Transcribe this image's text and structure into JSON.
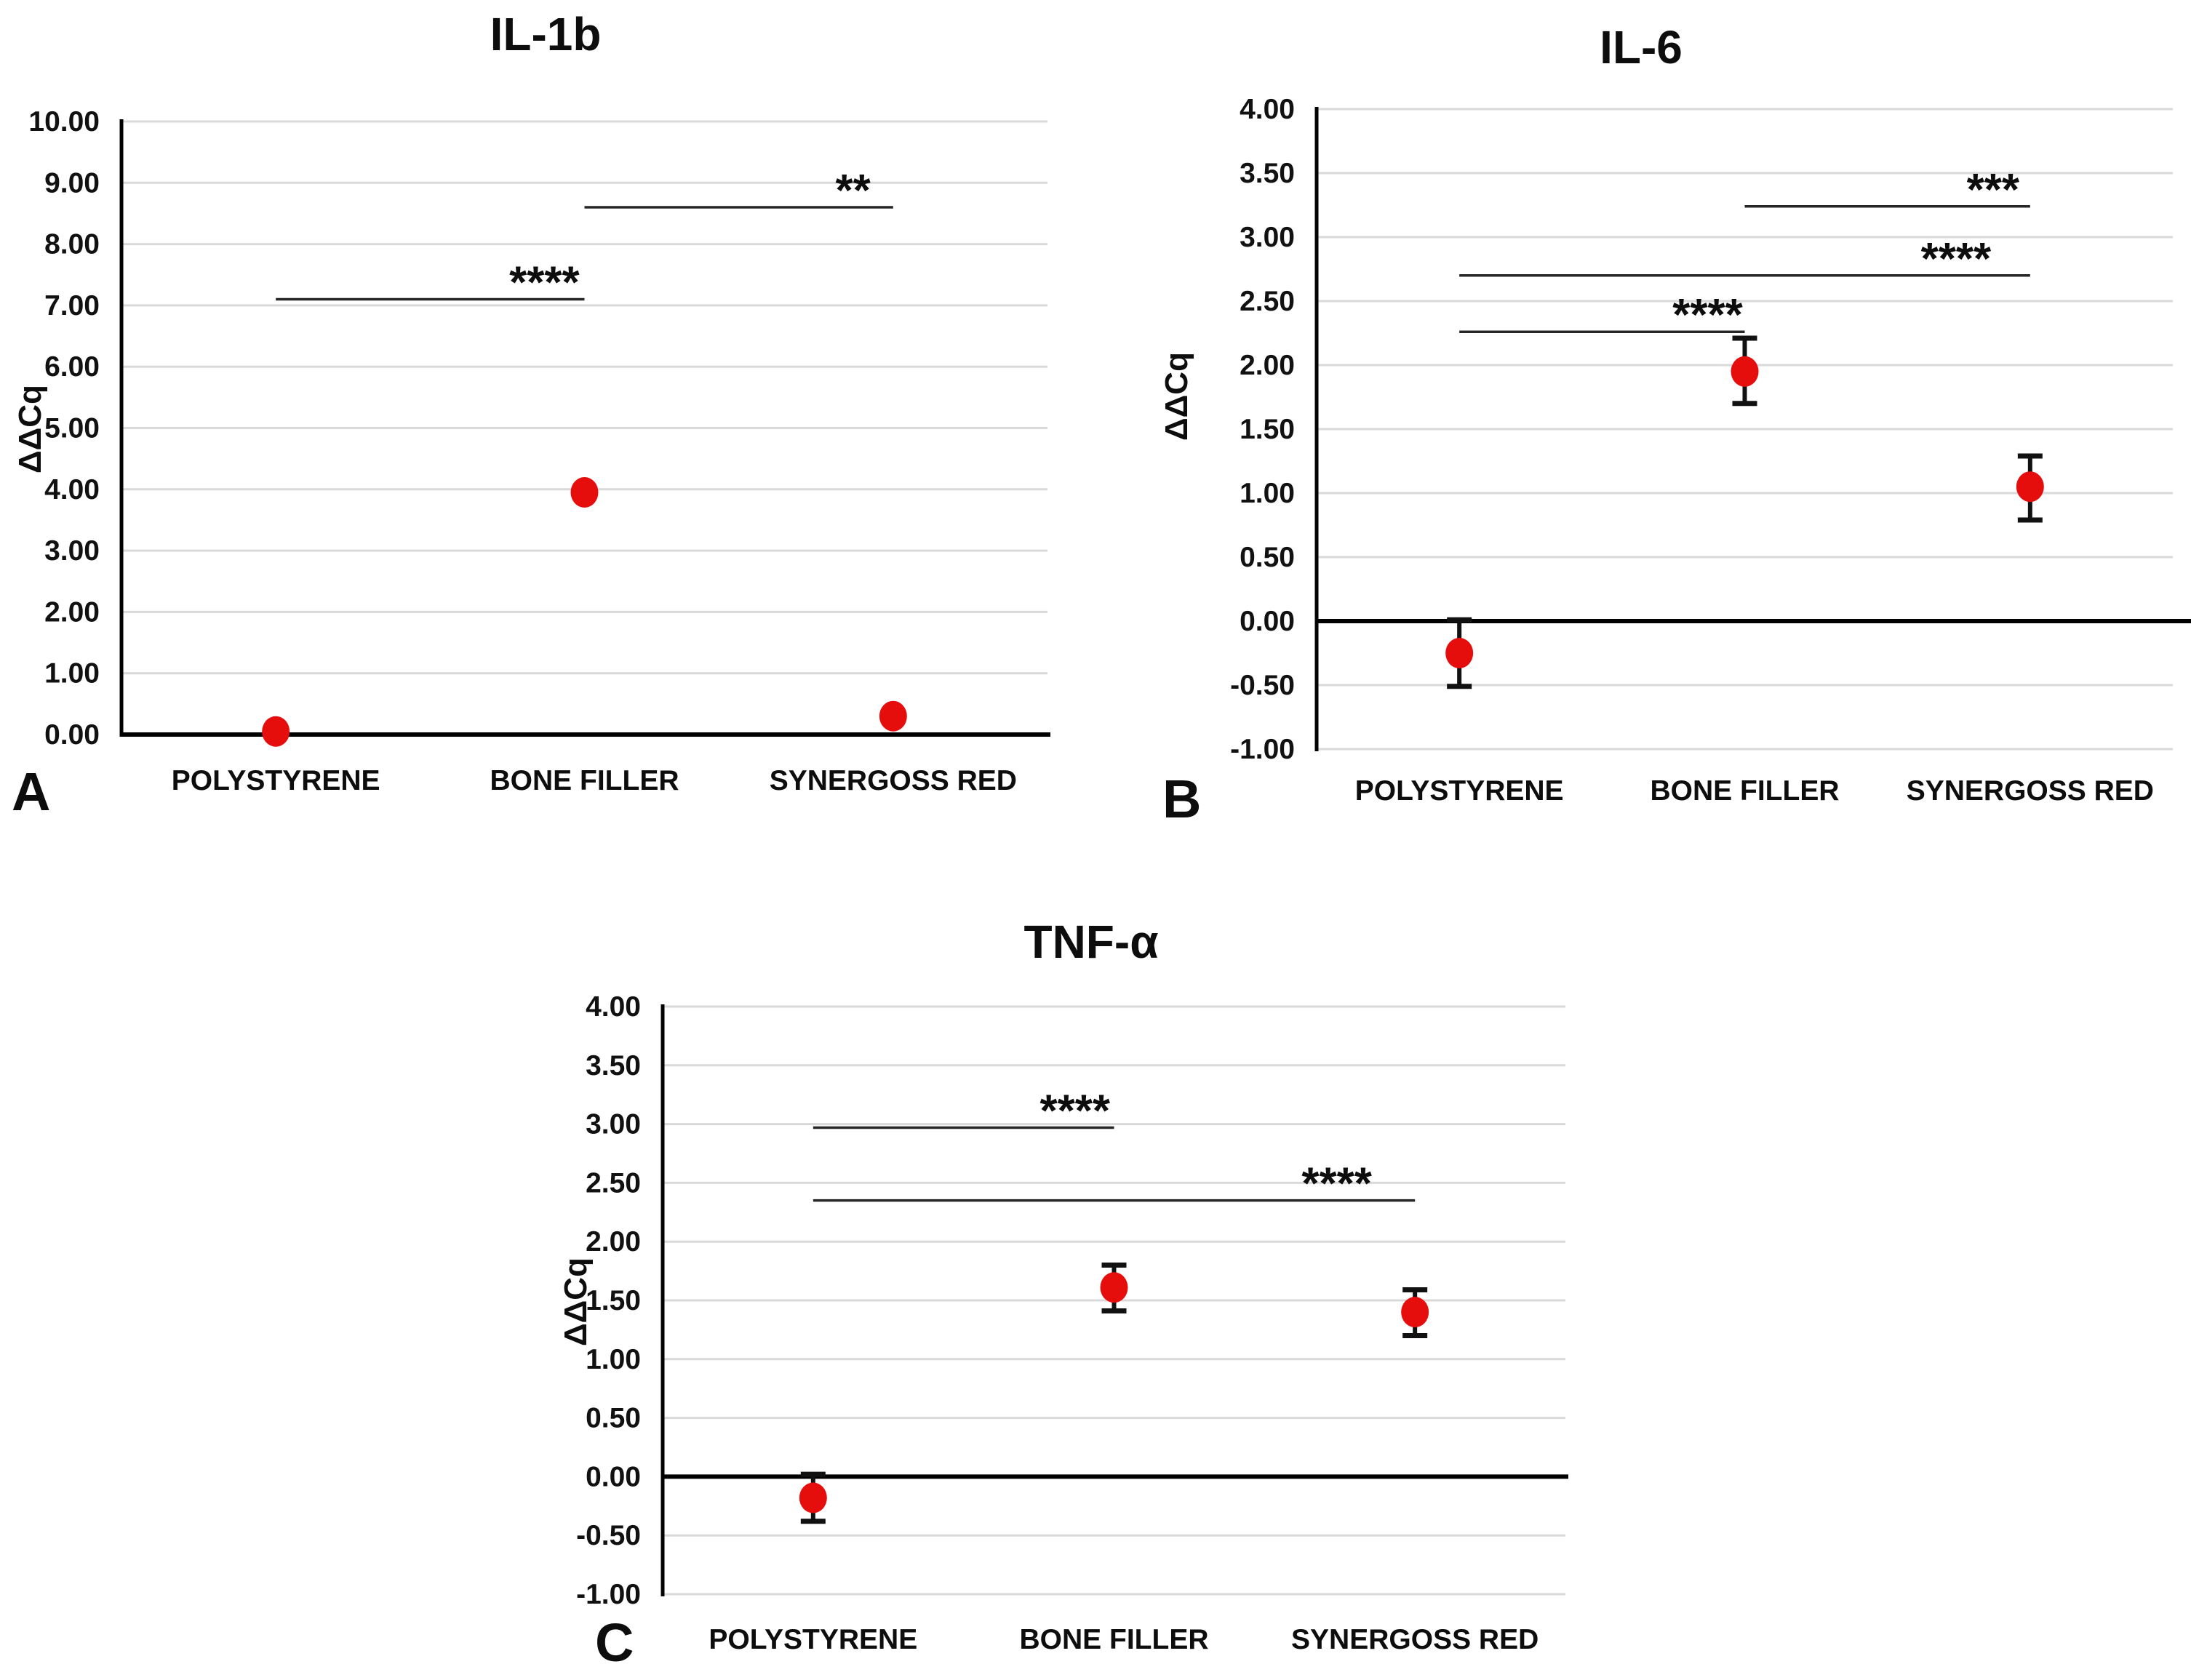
{
  "figure_type": "scientific-multipanel-figure",
  "colors": {
    "marker": "#e60d0d",
    "gridline": "#d9d9d9",
    "axis": "#000000",
    "zero_line": "#000000",
    "error_bar": "#111111",
    "significance_line": "#262626",
    "background": "#ffffff"
  },
  "chart_data": [
    {
      "id": "A",
      "panel_label": "A",
      "type": "scatter",
      "title": "IL-1b",
      "ylabel": "ΔΔCq",
      "xlabel": "",
      "categories": [
        "POLYSTYRENE",
        "BONE FILLER",
        "SYNERGOSS RED"
      ],
      "points": [
        {
          "category": "POLYSTYRENE",
          "value": 0.05,
          "err_low": null,
          "err_high": null
        },
        {
          "category": "BONE FILLER",
          "value": 3.95,
          "err_low": null,
          "err_high": null
        },
        {
          "category": "SYNERGOSS RED",
          "value": 0.3,
          "err_low": null,
          "err_high": null
        }
      ],
      "ylim": [
        0,
        10
      ],
      "ystep": 1.0,
      "tick_decimals": 2,
      "grid": true,
      "legend": false,
      "significance": [
        {
          "from": "POLYSTYRENE",
          "to": "BONE FILLER",
          "y": 7.1,
          "label": "****"
        },
        {
          "from": "BONE FILLER",
          "to": "SYNERGOSS RED",
          "y": 8.6,
          "label": "**"
        }
      ]
    },
    {
      "id": "B",
      "panel_label": "B",
      "type": "scatter",
      "title": "IL-6",
      "ylabel": "ΔΔCq",
      "xlabel": "",
      "categories": [
        "POLYSTYRENE",
        "BONE FILLER",
        "SYNERGOSS RED"
      ],
      "points": [
        {
          "category": "POLYSTYRENE",
          "value": -0.25,
          "err_low": -0.51,
          "err_high": 0.01
        },
        {
          "category": "BONE FILLER",
          "value": 1.95,
          "err_low": 1.7,
          "err_high": 2.21
        },
        {
          "category": "SYNERGOSS RED",
          "value": 1.05,
          "err_low": 0.79,
          "err_high": 1.29
        }
      ],
      "ylim": [
        -1,
        4
      ],
      "ystep": 0.5,
      "tick_decimals": 2,
      "grid": true,
      "legend": false,
      "significance": [
        {
          "from": "POLYSTYRENE",
          "to": "BONE FILLER",
          "y": 2.26,
          "label": "****"
        },
        {
          "from": "POLYSTYRENE",
          "to": "SYNERGOSS RED",
          "y": 2.7,
          "label": "****"
        },
        {
          "from": "BONE FILLER",
          "to": "SYNERGOSS RED",
          "y": 3.24,
          "label": "***"
        }
      ]
    },
    {
      "id": "C",
      "panel_label": "C",
      "type": "scatter",
      "title": "TNF-α",
      "ylabel": "ΔΔCq",
      "xlabel": "",
      "categories": [
        "POLYSTYRENE",
        "BONE FILLER",
        "SYNERGOSS RED"
      ],
      "points": [
        {
          "category": "POLYSTYRENE",
          "value": -0.18,
          "err_low": -0.38,
          "err_high": 0.02
        },
        {
          "category": "BONE FILLER",
          "value": 1.61,
          "err_low": 1.41,
          "err_high": 1.8
        },
        {
          "category": "SYNERGOSS RED",
          "value": 1.4,
          "err_low": 1.2,
          "err_high": 1.59
        }
      ],
      "ylim": [
        -1,
        4
      ],
      "ystep": 0.5,
      "tick_decimals": 2,
      "grid": true,
      "legend": false,
      "significance": [
        {
          "from": "POLYSTYRENE",
          "to": "BONE FILLER",
          "y": 2.97,
          "label": "****"
        },
        {
          "from": "POLYSTYRENE",
          "to": "SYNERGOSS RED",
          "y": 2.35,
          "label": "****"
        }
      ]
    }
  ]
}
